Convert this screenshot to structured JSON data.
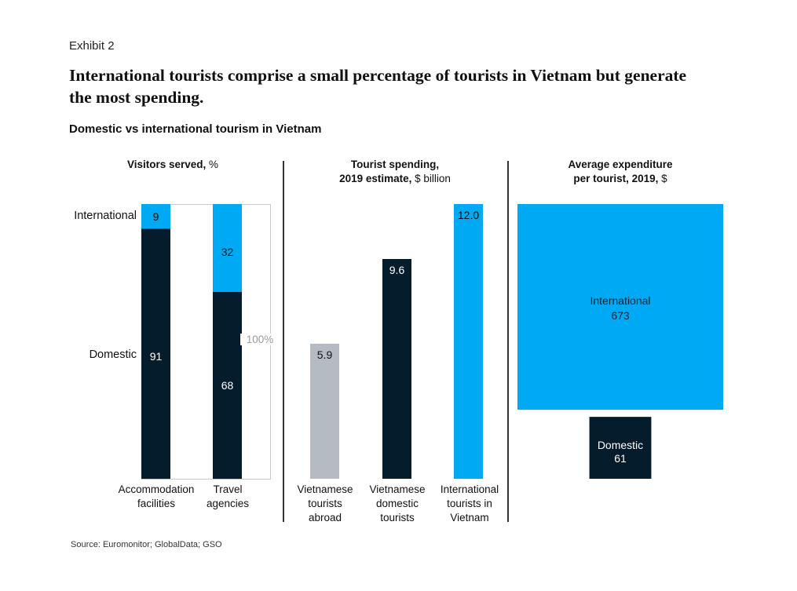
{
  "header": {
    "exhibit": "Exhibit 2",
    "title": "International tourists comprise a small percentage of tourists in Vietnam but generate the most spending.",
    "subtitle": "Domestic vs international tourism in Vietnam"
  },
  "colors": {
    "international": "#00A9F4",
    "domestic": "#051C2C",
    "abroad": "#B5BBC2",
    "frame": "#C8C8C8"
  },
  "chart_data": [
    {
      "type": "bar",
      "stacked": true,
      "title_bold": "Visitors served,",
      "title_rest": " %",
      "categories": [
        "Accommodation facilities",
        "Travel agencies"
      ],
      "category_lines": [
        [
          "Accommodation",
          "facilities"
        ],
        [
          "Travel",
          "agencies"
        ]
      ],
      "series": [
        {
          "name": "International",
          "values": [
            9,
            32
          ]
        },
        {
          "name": "Domestic",
          "values": [
            91,
            68
          ]
        }
      ],
      "total_label": "100%",
      "ylim": [
        0,
        100
      ]
    },
    {
      "type": "bar",
      "title_line1": "Tourist spending,",
      "title_bold": "2019 estimate,",
      "title_rest": " $ billion",
      "categories": [
        "Vietnamese tourists abroad",
        "Vietnamese domestic tourists",
        "International tourists in Vietnam"
      ],
      "category_lines": [
        [
          "Vietnamese",
          "tourists",
          "abroad"
        ],
        [
          "Vietnamese",
          "domestic",
          "tourists"
        ],
        [
          "International",
          "tourists in",
          "Vietnam"
        ]
      ],
      "values": [
        5.9,
        9.6,
        12.0
      ],
      "value_labels": [
        "5.9",
        "9.6",
        "12.0"
      ],
      "ylim": [
        0,
        12.0
      ]
    },
    {
      "type": "area",
      "title_line1": "Average expenditure",
      "title_bold": "per tourist, 2019,",
      "title_rest": " $",
      "categories": [
        "International",
        "Domestic"
      ],
      "values": [
        673,
        61
      ]
    }
  ],
  "footer": {
    "source": "Source: Euromonitor; GlobalData; GSO"
  }
}
